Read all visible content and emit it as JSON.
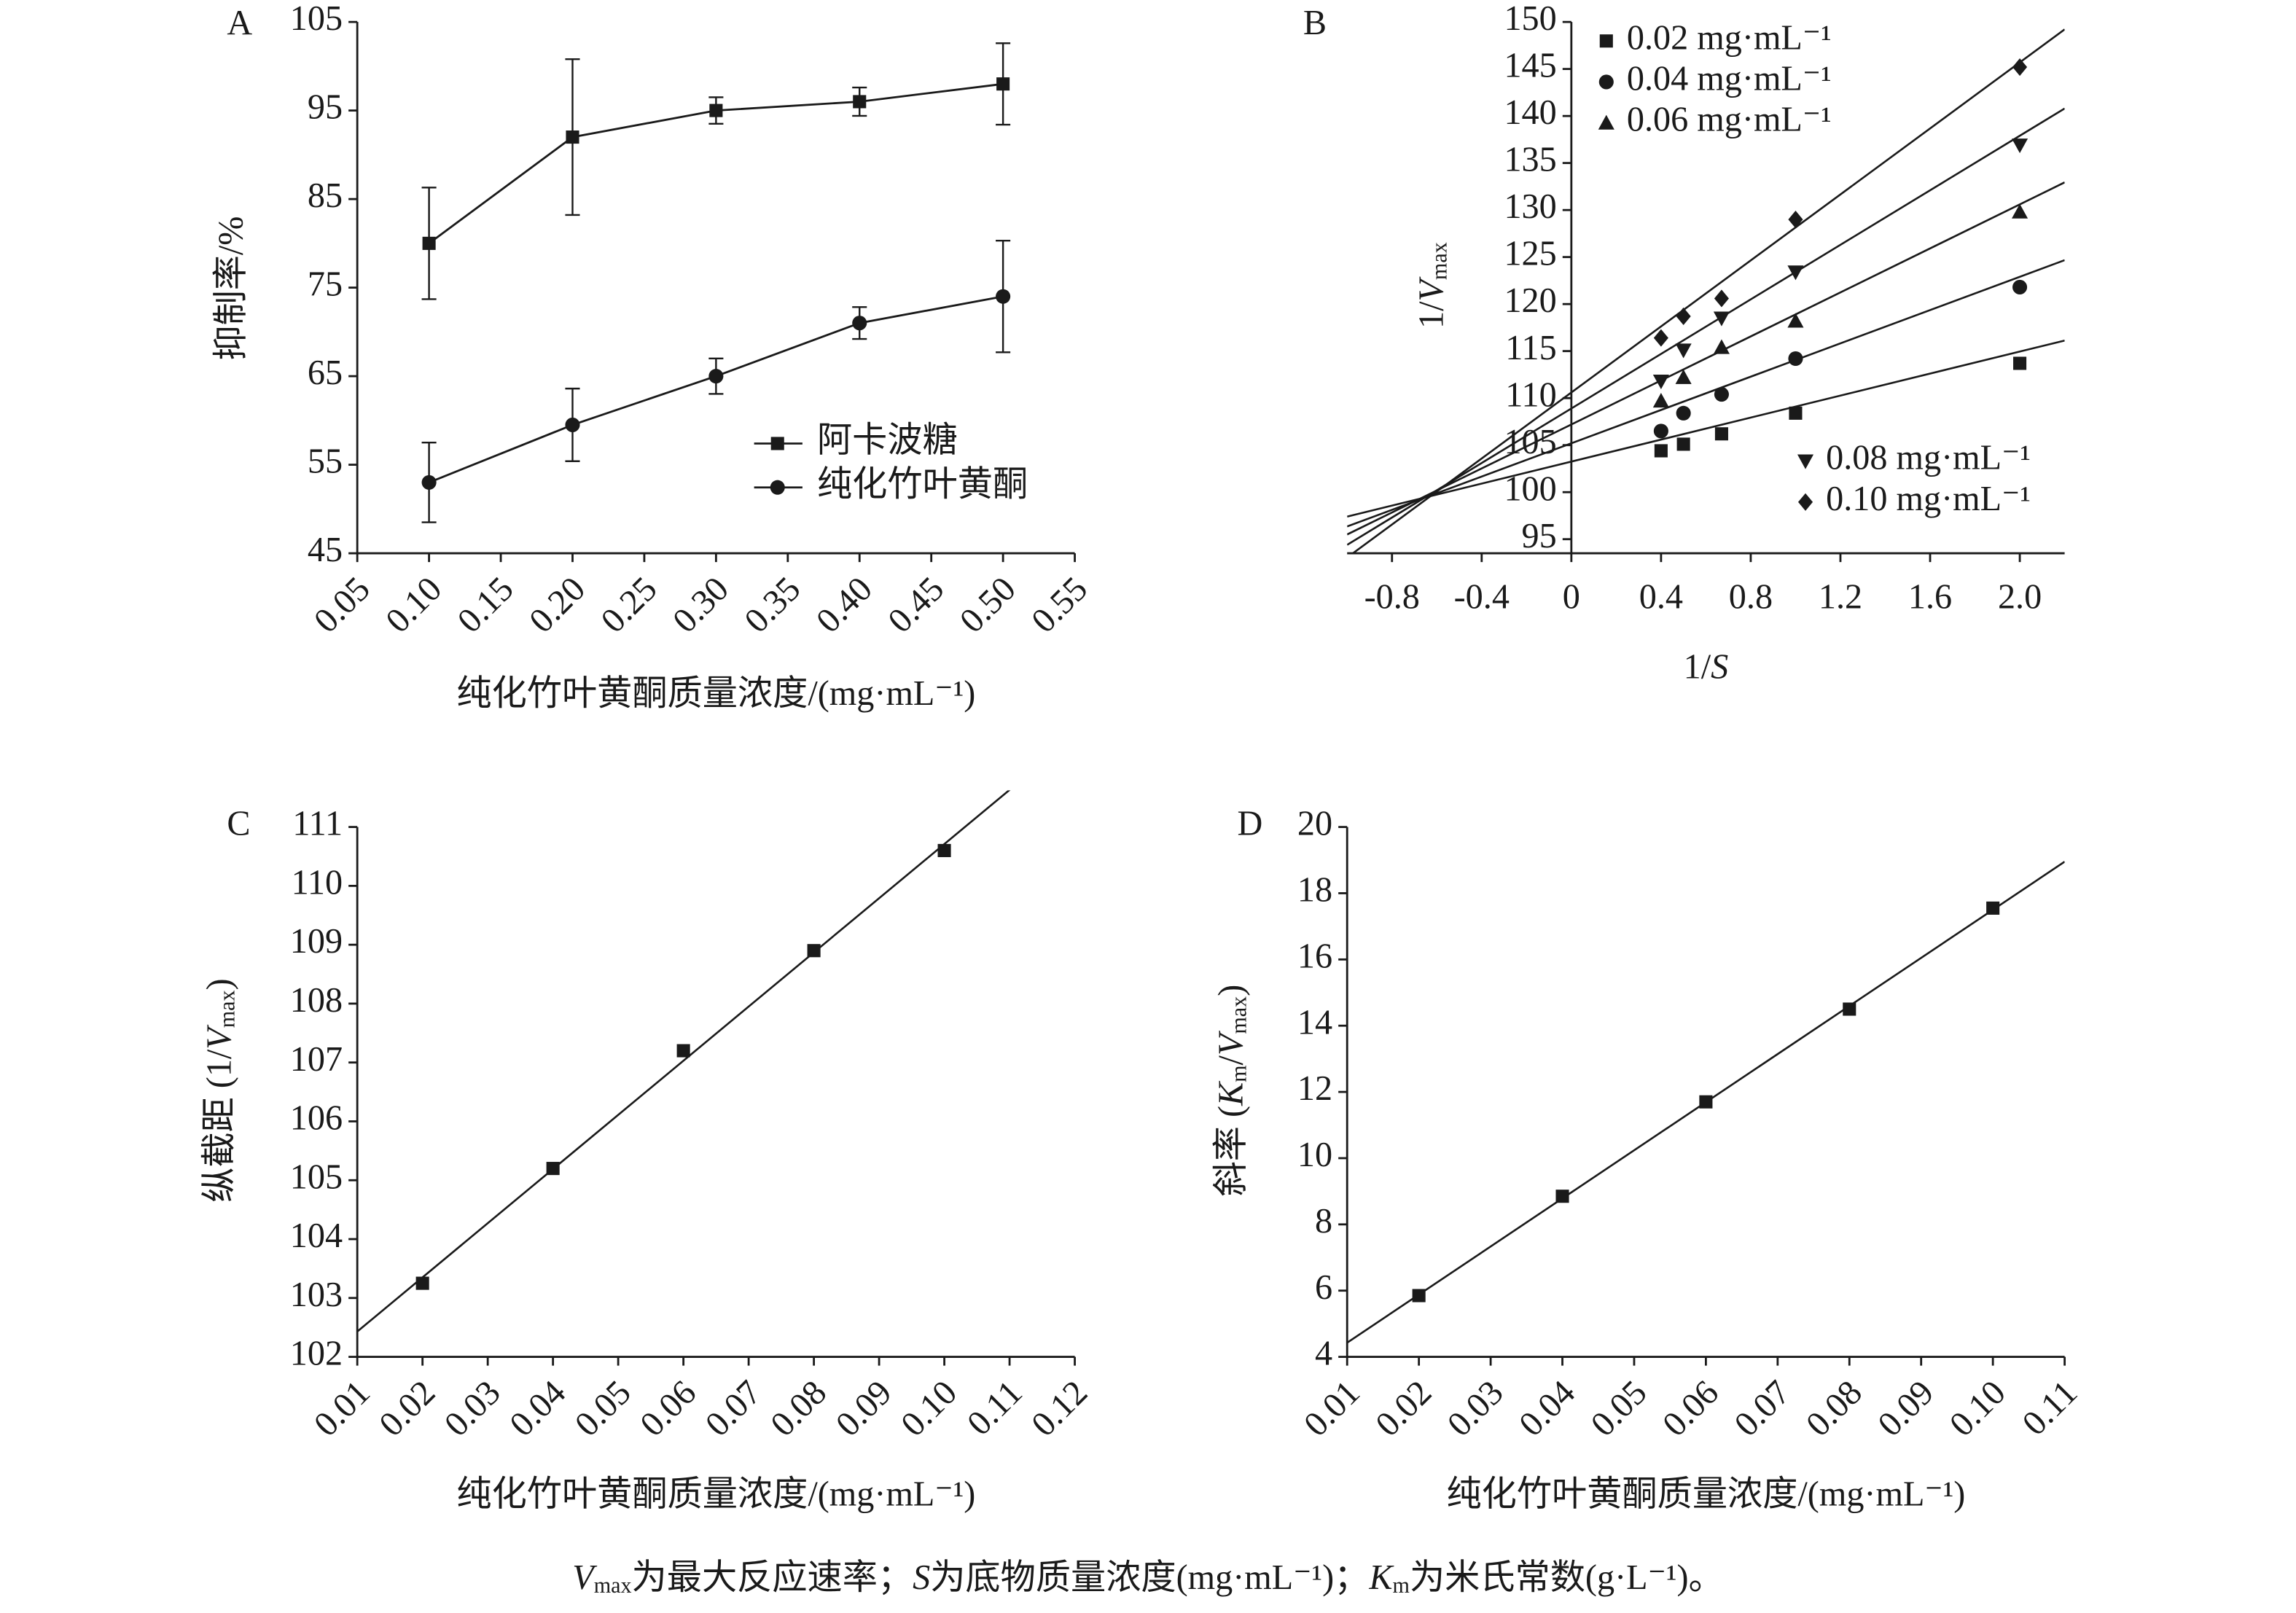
{
  "chart_data": [
    {
      "type": "line",
      "label": "A",
      "x": [
        0.1,
        0.2,
        0.3,
        0.4,
        0.5
      ],
      "xlim": [
        0.05,
        0.55
      ],
      "xticks": [
        0.05,
        {
          "value": 0.1,
          "label": "0.10"
        },
        0.15,
        {
          "value": 0.2,
          "label": "0.20"
        },
        0.25,
        {
          "value": 0.3,
          "label": "0.30"
        },
        0.35,
        {
          "value": 0.4,
          "label": "0.40"
        },
        0.45,
        {
          "value": 0.5,
          "label": "0.50"
        },
        0.55
      ],
      "ylim": [
        45,
        105
      ],
      "yticks": [
        45,
        55,
        65,
        75,
        85,
        95,
        105
      ],
      "y_label": [
        "抑制率/%"
      ],
      "x_label": [
        "纯化竹叶黄酮质量浓度/(mg·mL⁻¹)"
      ],
      "series": [
        {
          "name": "阿卡波糖",
          "marker": "square",
          "color": "#1a1a1a",
          "values": [
            80,
            92,
            95,
            96,
            98
          ],
          "errors": [
            6.3,
            8.8,
            1.5,
            1.6,
            4.6
          ]
        },
        {
          "name": "纯化竹叶黄酮",
          "marker": "circle",
          "color": "#1a1a1a",
          "values": [
            53,
            59.5,
            65,
            71,
            74
          ],
          "errors": [
            4.5,
            4.1,
            2.0,
            1.8,
            6.3
          ]
        }
      ]
    },
    {
      "type": "scatter",
      "label": "B",
      "x": [
        0.4,
        0.5,
        0.67,
        1.0,
        2.0
      ],
      "xlim": [
        -1,
        2.2
      ],
      "xticks": [
        -0.8,
        -0.4,
        0,
        0.4,
        0.8,
        1.2,
        1.6,
        {
          "value": 2,
          "label": "2.0"
        }
      ],
      "ylim": [
        93.5,
        150
      ],
      "yticks": [
        95,
        100,
        105,
        110,
        115,
        120,
        125,
        130,
        135,
        140,
        145,
        150
      ],
      "y_label": [
        "1/",
        "V",
        "max"
      ],
      "x_label": [
        "1/",
        "S"
      ],
      "trendline": true,
      "series": [
        {
          "name": "0.02 mg·mL⁻¹",
          "marker": "square",
          "color": "#1a1a1a",
          "legend": "upper left",
          "values": [
            104.4,
            105.1,
            106.2,
            108.4,
            113.7
          ]
        },
        {
          "name": "0.04 mg·mL⁻¹",
          "marker": "circle",
          "color": "#1a1a1a",
          "legend": "upper left",
          "values": [
            106.5,
            108.4,
            110.4,
            114.2,
            121.8
          ]
        },
        {
          "name": "0.06 mg·mL⁻¹",
          "marker": "triangle",
          "color": "#1a1a1a",
          "legend": "upper left",
          "values": [
            109.7,
            112.2,
            115.4,
            118.2,
            129.8
          ]
        },
        {
          "name": "0.08 mg·mL⁻¹",
          "marker": "triangle-down",
          "color": "#1a1a1a",
          "legend": "lower right",
          "values": [
            111.8,
            115.1,
            118.5,
            123.4,
            136.9
          ]
        },
        {
          "name": "0.10 mg·mL⁻¹",
          "marker": "diamond",
          "color": "#1a1a1a",
          "legend": "lower right",
          "values": [
            116.4,
            118.7,
            120.6,
            129.0,
            145.2
          ]
        }
      ]
    },
    {
      "type": "scatter",
      "label": "C",
      "x": [
        0.02,
        0.04,
        0.06,
        0.08,
        0.1
      ],
      "values": [
        103.25,
        105.2,
        107.2,
        108.9,
        110.6
      ],
      "marker": "square",
      "color": "#1a1a1a",
      "trendline": true,
      "xlim": [
        0.01,
        0.12
      ],
      "xticks": [
        0.01,
        0.02,
        0.03,
        0.04,
        0.05,
        0.06,
        0.07,
        0.08,
        0.09,
        {
          "value": 0.1,
          "label": "0.10"
        },
        0.11,
        0.12
      ],
      "ylim": [
        102,
        111
      ],
      "yticks": [
        102,
        103,
        104,
        105,
        106,
        107,
        108,
        109,
        110,
        111
      ],
      "y_label": [
        "纵截距 (1/",
        "V",
        "max",
        ")"
      ],
      "x_label": [
        "纯化竹叶黄酮质量浓度/(mg·mL⁻¹)"
      ]
    },
    {
      "type": "scatter",
      "label": "D",
      "x": [
        0.02,
        0.04,
        0.06,
        0.08,
        0.1
      ],
      "values": [
        5.85,
        8.85,
        11.7,
        14.5,
        17.55
      ],
      "marker": "square",
      "color": "#1a1a1a",
      "trendline": true,
      "xlim": [
        0.01,
        0.11
      ],
      "xticks": [
        0.01,
        0.02,
        0.03,
        0.04,
        0.05,
        0.06,
        0.07,
        0.08,
        0.09,
        {
          "value": 0.1,
          "label": "0.10"
        },
        0.11
      ],
      "ylim": [
        4,
        20
      ],
      "yticks": [
        4,
        6,
        8,
        10,
        12,
        14,
        16,
        18,
        20
      ],
      "y_label": [
        "斜率 (",
        "K",
        "m",
        "/",
        "V",
        "max",
        ")"
      ],
      "x_label": [
        "纯化竹叶黄酮质量浓度/(mg·mL⁻¹)"
      ]
    }
  ],
  "caption": [
    "V",
    "max",
    "为最大反应速率；",
    "S",
    "为底物质量浓度(mg·mL⁻¹)；",
    "K",
    "m",
    "为米氏常数(g·L⁻¹)。"
  ]
}
